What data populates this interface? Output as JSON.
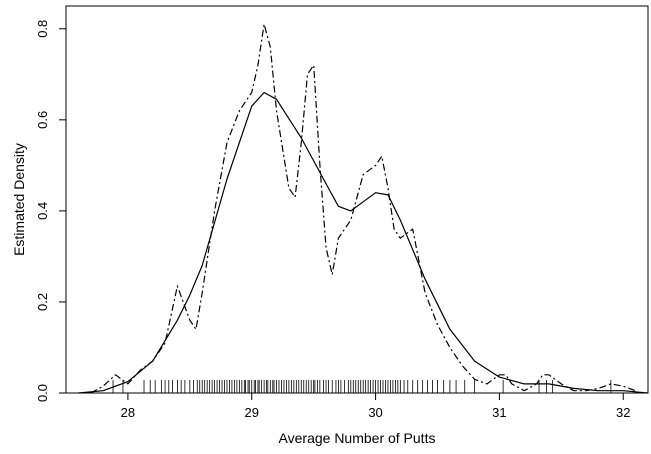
{
  "chart_data": {
    "type": "line",
    "title": "",
    "xlabel": "Average Number of Putts",
    "ylabel": "Estimated Density",
    "xlim": [
      27.5,
      32.2
    ],
    "ylim": [
      0.0,
      0.85
    ],
    "xticks": [
      28,
      29,
      30,
      31,
      32
    ],
    "xtick_labels": [
      "28",
      "29",
      "30",
      "31",
      "32"
    ],
    "yticks": [
      0.0,
      0.2,
      0.4,
      0.6,
      0.8
    ],
    "ytick_labels": [
      "0.0",
      "0.2",
      "0.4",
      "0.6",
      "0.8"
    ],
    "grid": false,
    "legend": "none",
    "series": [
      {
        "style": "solid",
        "x": [
          27.6,
          27.8,
          28.0,
          28.2,
          28.4,
          28.5,
          28.6,
          28.8,
          29.0,
          29.1,
          29.2,
          29.4,
          29.6,
          29.7,
          29.8,
          29.9,
          30.0,
          30.1,
          30.2,
          30.4,
          30.6,
          30.8,
          31.0,
          31.2,
          31.4,
          31.6,
          31.8,
          32.0,
          32.2
        ],
        "y": [
          0.0,
          0.005,
          0.025,
          0.07,
          0.16,
          0.215,
          0.28,
          0.47,
          0.63,
          0.66,
          0.645,
          0.56,
          0.46,
          0.41,
          0.4,
          0.42,
          0.44,
          0.435,
          0.38,
          0.25,
          0.14,
          0.07,
          0.035,
          0.02,
          0.02,
          0.01,
          0.005,
          0.005,
          0.0
        ]
      },
      {
        "style": "dashdot",
        "x": [
          27.7,
          27.8,
          27.9,
          28.0,
          28.1,
          28.2,
          28.3,
          28.4,
          28.5,
          28.55,
          28.6,
          28.7,
          28.8,
          28.9,
          29.0,
          29.05,
          29.1,
          29.15,
          29.2,
          29.3,
          29.35,
          29.4,
          29.45,
          29.5,
          29.55,
          29.6,
          29.65,
          29.7,
          29.8,
          29.9,
          30.0,
          30.05,
          30.1,
          30.15,
          30.2,
          30.3,
          30.4,
          30.5,
          30.6,
          30.7,
          30.8,
          30.9,
          31.0,
          31.05,
          31.1,
          31.2,
          31.3,
          31.35,
          31.4,
          31.5,
          31.6,
          31.7,
          31.8,
          31.9,
          32.0,
          32.1
        ],
        "y": [
          0.0,
          0.015,
          0.04,
          0.02,
          0.05,
          0.07,
          0.11,
          0.235,
          0.16,
          0.14,
          0.22,
          0.4,
          0.55,
          0.62,
          0.66,
          0.72,
          0.81,
          0.76,
          0.62,
          0.45,
          0.43,
          0.55,
          0.7,
          0.72,
          0.5,
          0.32,
          0.26,
          0.34,
          0.38,
          0.48,
          0.5,
          0.52,
          0.45,
          0.36,
          0.34,
          0.36,
          0.22,
          0.15,
          0.1,
          0.06,
          0.03,
          0.02,
          0.04,
          0.04,
          0.02,
          0.005,
          0.02,
          0.04,
          0.04,
          0.02,
          0.005,
          0.005,
          0.01,
          0.02,
          0.015,
          0.005
        ]
      }
    ],
    "rug": [
      27.88,
      27.96,
      28.13,
      28.18,
      28.22,
      28.27,
      28.3,
      28.33,
      28.36,
      28.4,
      28.43,
      28.46,
      28.5,
      28.53,
      28.56,
      28.58,
      28.6,
      28.62,
      28.64,
      28.66,
      28.68,
      28.7,
      28.72,
      28.74,
      28.76,
      28.78,
      28.8,
      28.82,
      28.84,
      28.86,
      28.88,
      28.9,
      28.92,
      28.94,
      28.95,
      28.97,
      28.98,
      29.0,
      29.02,
      29.03,
      29.05,
      29.06,
      29.08,
      29.1,
      29.12,
      29.13,
      29.15,
      29.17,
      29.18,
      29.2,
      29.22,
      29.24,
      29.26,
      29.28,
      29.3,
      29.32,
      29.34,
      29.36,
      29.38,
      29.4,
      29.42,
      29.44,
      29.46,
      29.48,
      29.5,
      29.51,
      29.53,
      29.55,
      29.58,
      29.6,
      29.62,
      29.65,
      29.68,
      29.7,
      29.72,
      29.75,
      29.78,
      29.8,
      29.82,
      29.84,
      29.86,
      29.88,
      29.9,
      29.92,
      29.94,
      29.96,
      29.98,
      30.0,
      30.02,
      30.04,
      30.06,
      30.08,
      30.1,
      30.12,
      30.14,
      30.16,
      30.18,
      30.2,
      30.23,
      30.26,
      30.3,
      30.34,
      30.38,
      30.42,
      30.46,
      30.5,
      30.55,
      30.6,
      30.65,
      30.72,
      30.8,
      31.03,
      31.32,
      31.38,
      31.43,
      31.9
    ]
  }
}
